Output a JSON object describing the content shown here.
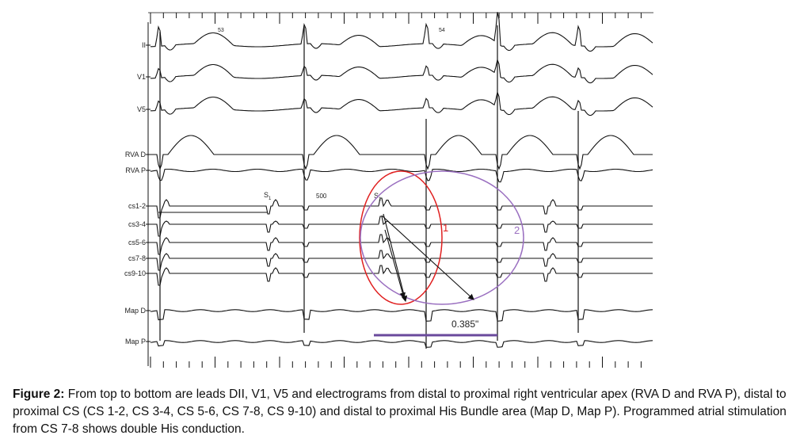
{
  "figure": {
    "lead_labels": [
      "II",
      "V1",
      "V5",
      "RVA D",
      "RVA P",
      "cs1-2",
      "cs3-4",
      "cs5-6",
      "cs7-8",
      "cs9-10",
      "Map D",
      "Map P"
    ],
    "beat_numbers": [
      "53",
      "54"
    ],
    "pacing_label": "S",
    "pacing_subscript": "1",
    "cycle_length": "500",
    "loop_labels": [
      "1",
      "2"
    ],
    "interval": "0.385\""
  },
  "caption": {
    "label": "Figure 2:",
    "text": "From top to bottom are leads DII, V1, V5 and electrograms from distal to proximal right ventricular apex (RVA D and RVA P), distal to proximal CS (CS 1-2, CS 3-4, CS 5-6, CS 7-8, CS 9-10) and distal to proximal His Bundle area (Map D, Map P). Programmed atrial stimulation from CS 7-8 shows double His conduction."
  },
  "colors": {
    "trace": "#111111",
    "loop1": "#e02020",
    "loop2": "#9a6fc0",
    "bar": "#6a4a9c"
  }
}
